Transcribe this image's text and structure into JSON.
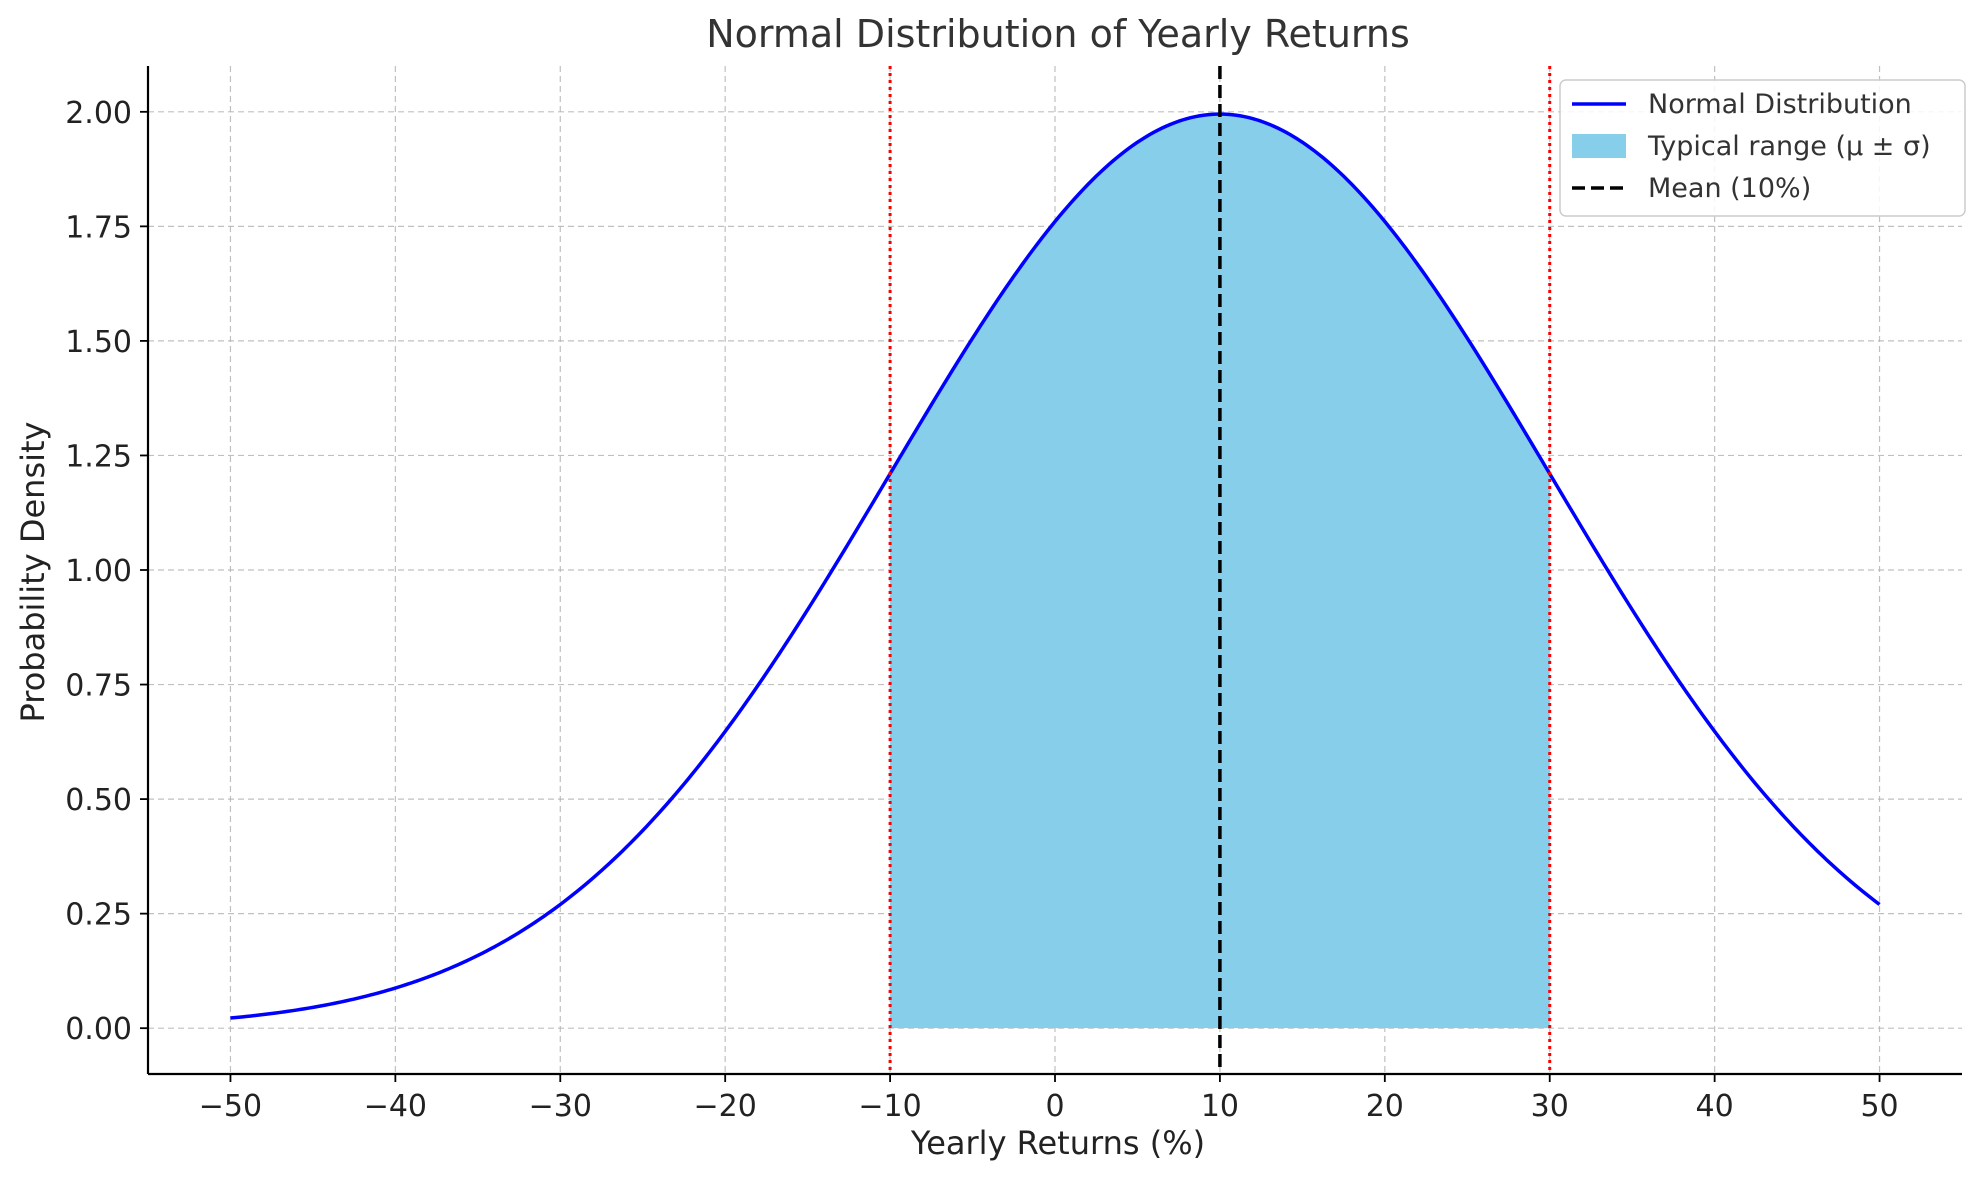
{
  "chart_data": {
    "type": "line",
    "title": "Normal Distribution of Yearly Returns",
    "xlabel": "Yearly Returns (%)",
    "ylabel": "Probability Density",
    "xlim": [
      -55,
      55
    ],
    "ylim": [
      -0.1,
      2.1
    ],
    "xticks": [
      -50,
      -40,
      -30,
      -20,
      -10,
      0,
      10,
      20,
      30,
      40,
      50
    ],
    "xtick_labels": [
      "−50",
      "−40",
      "−30",
      "−20",
      "−10",
      "0",
      "10",
      "20",
      "30",
      "40",
      "50"
    ],
    "yticks": [
      0,
      0.25,
      0.5,
      0.75,
      1.0,
      1.25,
      1.5,
      1.75,
      2.0
    ],
    "ytick_labels": [
      "0.00",
      "0.25",
      "0.50",
      "0.75",
      "1.00",
      "1.25",
      "1.50",
      "1.75",
      "2.00"
    ],
    "grid": true,
    "legend_position": "top-right",
    "series": [
      {
        "name": "Normal Distribution",
        "color": "#0000ff",
        "style": "solid",
        "mean": 10,
        "std_dev": 20,
        "peak_density": 1.995,
        "x": [
          -50,
          -45,
          -40,
          -35,
          -30,
          -25,
          -20,
          -15,
          -10,
          -5,
          0,
          5,
          10,
          15,
          20,
          25,
          30,
          35,
          40,
          45,
          50
        ],
        "y": [
          0.022,
          0.045,
          0.088,
          0.158,
          0.27,
          0.43,
          0.648,
          0.912,
          1.21,
          1.509,
          1.76,
          1.933,
          1.995,
          1.933,
          1.76,
          1.509,
          1.21,
          0.912,
          0.648,
          0.43,
          0.27
        ]
      },
      {
        "name": "Typical range (μ ± σ)",
        "color": "#87ceeb",
        "style": "fill",
        "x_range": [
          -10,
          30
        ]
      },
      {
        "name": "Mean (10%)",
        "color": "#000000",
        "style": "dashed",
        "x": 10
      }
    ],
    "annotations": [
      {
        "type": "vline",
        "x": -10,
        "color": "#ff0000",
        "style": "dotted"
      },
      {
        "type": "vline",
        "x": 30,
        "color": "#ff0000",
        "style": "dotted"
      }
    ]
  }
}
